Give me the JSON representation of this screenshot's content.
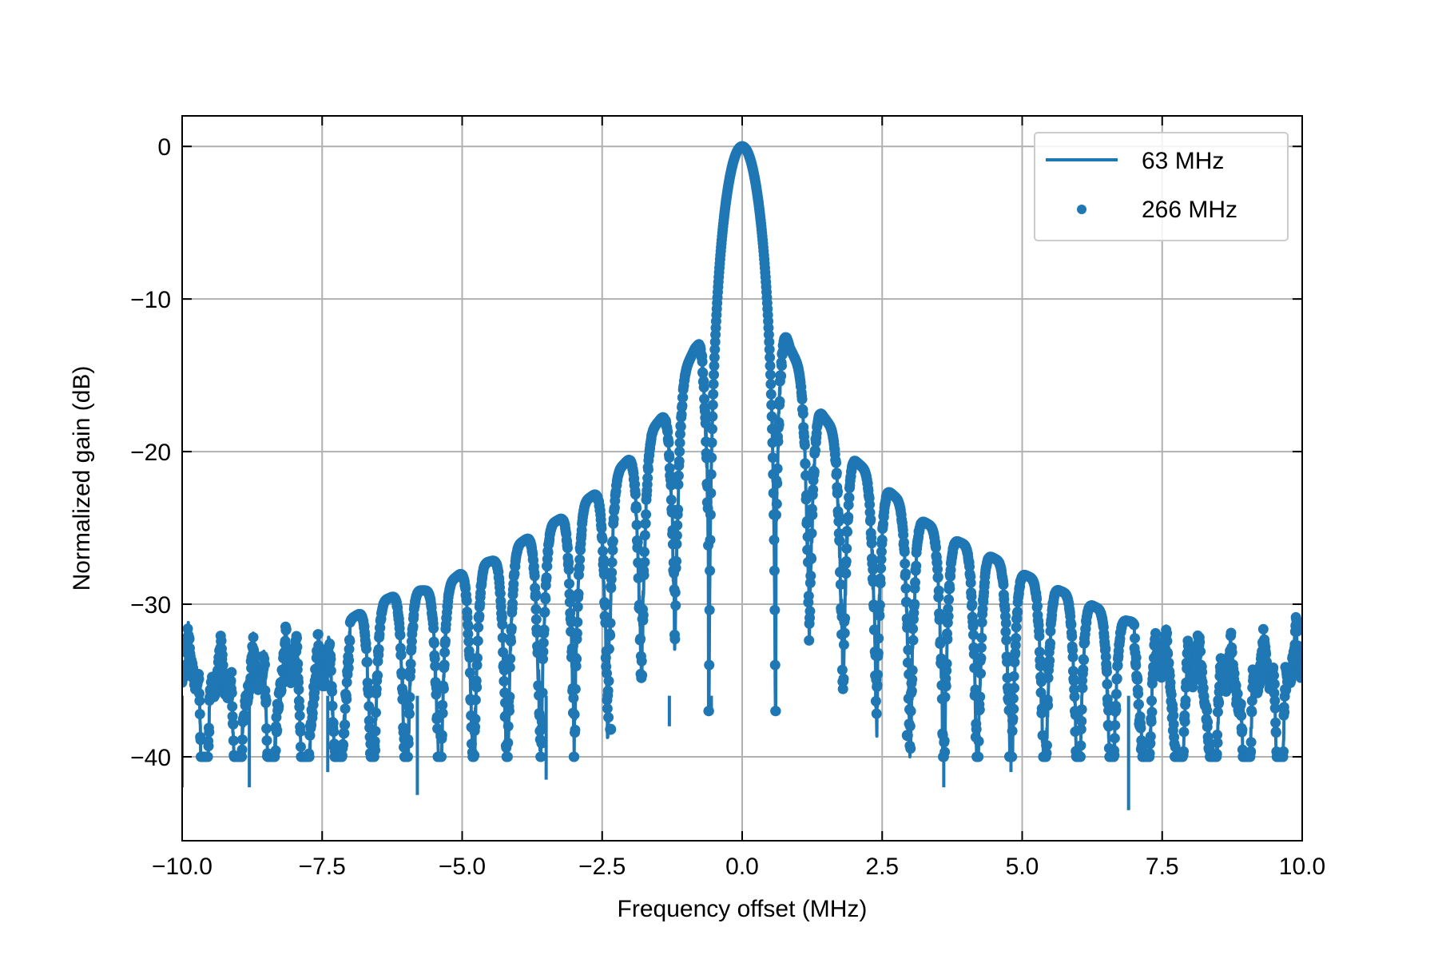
{
  "chart_data": {
    "type": "line",
    "title": "",
    "xlabel": "Frequency offset (MHz)",
    "ylabel": "Normalized gain (dB)",
    "xlim": [
      -10,
      10
    ],
    "ylim": [
      -45.5,
      2
    ],
    "grid": true,
    "legend_position": "top-right",
    "x_ticks": [
      -10,
      -7.5,
      -5,
      -2.5,
      0,
      2.5,
      5,
      7.5,
      10
    ],
    "x_tick_labels": [
      "−10.0",
      "−7.5",
      "−5.0",
      "−2.5",
      "0.0",
      "2.5",
      "5.0",
      "7.5",
      "10.0"
    ],
    "y_ticks": [
      0,
      -10,
      -20,
      -30,
      -40
    ],
    "y_tick_labels": [
      "0",
      "−10",
      "−20",
      "−30",
      "−40"
    ],
    "series": [
      {
        "name": "63 MHz",
        "style": "line",
        "color": "#1f77b4",
        "model": "sinc-squared",
        "main_lobe_peak_db": 0,
        "main_lobe_first_null_mhz": 0.6,
        "floor_db": -33,
        "sidelobe_peaks": [
          {
            "x": -9.7,
            "y": -31.6
          },
          {
            "x": -9.1,
            "y": -32.9
          },
          {
            "x": -8.6,
            "y": -32.1
          },
          {
            "x": -8.0,
            "y": -31.6
          },
          {
            "x": -7.5,
            "y": -32.1
          },
          {
            "x": -6.6,
            "y": -30.1
          },
          {
            "x": -6.0,
            "y": -29.1
          },
          {
            "x": -5.4,
            "y": -29.1
          },
          {
            "x": -4.9,
            "y": -27.6
          },
          {
            "x": -4.4,
            "y": -27.1
          },
          {
            "x": -3.8,
            "y": -25.6
          },
          {
            "x": -3.2,
            "y": -24.3
          },
          {
            "x": -2.6,
            "y": -22.7
          },
          {
            "x": -2.0,
            "y": -20.4
          },
          {
            "x": -1.4,
            "y": -17.6
          },
          {
            "x": -0.8,
            "y": -12.9
          },
          {
            "x": 0.0,
            "y": 0.0
          },
          {
            "x": 0.85,
            "y": -13.2
          },
          {
            "x": 1.45,
            "y": -17.7
          },
          {
            "x": 2.05,
            "y": -20.7
          },
          {
            "x": 2.65,
            "y": -22.7
          },
          {
            "x": 3.2,
            "y": -24.5
          },
          {
            "x": 3.8,
            "y": -25.8
          },
          {
            "x": 4.4,
            "y": -26.8
          },
          {
            "x": 5.0,
            "y": -28.0
          },
          {
            "x": 5.6,
            "y": -29.0
          },
          {
            "x": 6.15,
            "y": -29.9
          },
          {
            "x": 6.75,
            "y": -31.0
          },
          {
            "x": 7.3,
            "y": -31.4
          },
          {
            "x": 7.9,
            "y": -31.9
          },
          {
            "x": 8.45,
            "y": -32.0
          },
          {
            "x": 9.0,
            "y": -32.7
          },
          {
            "x": 9.6,
            "y": -31.3
          }
        ],
        "deep_nulls": [
          {
            "x": -10.0,
            "y": -42.0
          },
          {
            "x": -8.8,
            "y": -42.0
          },
          {
            "x": -7.4,
            "y": -41.0
          },
          {
            "x": -5.8,
            "y": -42.5
          },
          {
            "x": -3.5,
            "y": -41.5
          },
          {
            "x": -1.3,
            "y": -38.0
          },
          {
            "x": -0.55,
            "y": -37.0
          },
          {
            "x": 3.6,
            "y": -42.0
          },
          {
            "x": 4.8,
            "y": -41.0
          },
          {
            "x": 6.9,
            "y": -43.5
          }
        ]
      },
      {
        "name": "266 MHz",
        "style": "markers",
        "color": "#1f77b4",
        "model": "sinc-squared",
        "main_lobe_peak_db": 0,
        "main_lobe_first_null_mhz": 0.6,
        "floor_db": -33,
        "sidelobe_peaks": [
          {
            "x": -9.7,
            "y": -31.6
          },
          {
            "x": -9.1,
            "y": -32.9
          },
          {
            "x": -8.6,
            "y": -32.1
          },
          {
            "x": -8.0,
            "y": -31.6
          },
          {
            "x": -7.5,
            "y": -32.1
          },
          {
            "x": -6.6,
            "y": -30.1
          },
          {
            "x": -6.0,
            "y": -29.1
          },
          {
            "x": -5.4,
            "y": -29.1
          },
          {
            "x": -4.9,
            "y": -27.6
          },
          {
            "x": -4.4,
            "y": -27.1
          },
          {
            "x": -3.8,
            "y": -25.6
          },
          {
            "x": -3.2,
            "y": -24.3
          },
          {
            "x": -2.6,
            "y": -22.7
          },
          {
            "x": -2.0,
            "y": -20.4
          },
          {
            "x": -1.4,
            "y": -17.6
          },
          {
            "x": -0.8,
            "y": -12.9
          },
          {
            "x": 0.0,
            "y": 0.0
          },
          {
            "x": 0.85,
            "y": -13.2
          },
          {
            "x": 1.45,
            "y": -17.7
          },
          {
            "x": 2.05,
            "y": -20.7
          },
          {
            "x": 2.65,
            "y": -22.7
          },
          {
            "x": 3.2,
            "y": -24.5
          },
          {
            "x": 3.8,
            "y": -25.8
          },
          {
            "x": 4.4,
            "y": -26.8
          },
          {
            "x": 5.0,
            "y": -28.0
          },
          {
            "x": 5.6,
            "y": -29.0
          },
          {
            "x": 6.15,
            "y": -29.9
          },
          {
            "x": 6.75,
            "y": -31.0
          },
          {
            "x": 7.3,
            "y": -31.4
          },
          {
            "x": 7.9,
            "y": -31.9
          },
          {
            "x": 8.45,
            "y": -32.0
          },
          {
            "x": 9.0,
            "y": -32.7
          },
          {
            "x": 9.6,
            "y": -31.3
          }
        ],
        "isolated_low_markers": [
          {
            "x": -2.35,
            "y": -38.2
          },
          {
            "x": 2.95,
            "y": -38.6
          }
        ]
      }
    ]
  }
}
